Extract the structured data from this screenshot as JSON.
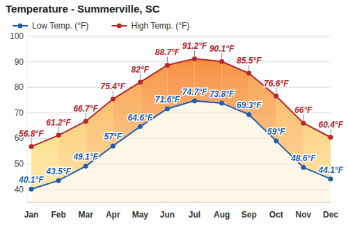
{
  "chart_data": {
    "type": "line",
    "title": "Temperature - Summerville, SC",
    "categories": [
      "Jan",
      "Feb",
      "Mar",
      "Apr",
      "May",
      "Jun",
      "Jul",
      "Aug",
      "Sep",
      "Oct",
      "Nov",
      "Dec"
    ],
    "series": [
      {
        "name": "Low Temp. (°F)",
        "color": "#1f5fae",
        "marker": "circle",
        "values": [
          40.1,
          43.5,
          49.1,
          57,
          64.6,
          71.6,
          74.7,
          73.8,
          69.3,
          59,
          48.6,
          44.1
        ],
        "value_labels": [
          "40.1°F",
          "43.5°F",
          "49.1°F",
          "57°F",
          "64.6°F",
          "71.6°F",
          "74.7°F",
          "73.8°F",
          "69.3°F",
          "59°F",
          "48.6°F",
          "44.1°F"
        ]
      },
      {
        "name": "High Temp. (°F)",
        "color": "#b5252a",
        "marker": "circle",
        "values": [
          56.8,
          61.2,
          66.7,
          75.4,
          82,
          88.7,
          91.2,
          90.1,
          85.5,
          76.6,
          66,
          60.4
        ],
        "value_labels": [
          "56.8°F",
          "61.2°F",
          "66.7°F",
          "75.4°F",
          "82°F",
          "88.7°F",
          "91.2°F",
          "90.1°F",
          "85.5°F",
          "76.6°F",
          "66°F",
          "60.4°F"
        ]
      }
    ],
    "ylim": [
      35,
      100
    ],
    "yticks": [
      40,
      50,
      60,
      70,
      80,
      90,
      100
    ],
    "grid": true,
    "legend": "top",
    "data_labels": true
  }
}
